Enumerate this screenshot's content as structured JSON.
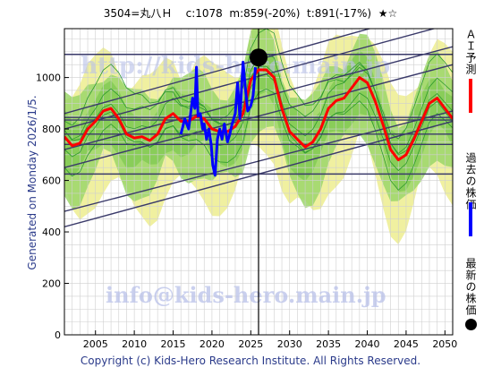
{
  "header": {
    "title": "3504=丸八Ｈ    c:1078  m:859(-20%)  t:891(-17%)  ★☆",
    "generated": "Generated on Monday 2026/1/5.",
    "copyright": "Copyright (c) Kids-Hero Research Institute. All Rights Reserved.",
    "watermark": "info@kids-hero.main.jp",
    "watermark_top": "http://kids-hero.main.jp"
  },
  "legend": {
    "ai_label": "ＡＩ予測",
    "past_label": "過去の株価",
    "latest_label": "最新の株価"
  },
  "colors": {
    "ai": "#ff0000",
    "past": "#0000ff",
    "latest": "#000000",
    "band_green": "#9bd66a",
    "band_yellow": "#f0f0a0",
    "trend": "#3a3a6a",
    "bg": "#ffffff"
  },
  "chart_data": {
    "type": "line",
    "xlim": [
      2001,
      2051
    ],
    "ylim": [
      0,
      1190
    ],
    "x_ticks": [
      2005,
      2010,
      2015,
      2020,
      2025,
      2030,
      2035,
      2040,
      2045,
      2050
    ],
    "y_ticks": [
      0,
      200,
      400,
      600,
      800,
      1000
    ],
    "current_marker": {
      "x": 2026.0,
      "y": 1078
    },
    "current_year_line": 2026.0,
    "horizontal_lines": [
      1090,
      845,
      835,
      780,
      740,
      625
    ],
    "trend_lines": [
      {
        "x": [
          2001,
          2051
        ],
        "y": [
          860,
          1280
        ]
      },
      {
        "x": [
          2001,
          2051
        ],
        "y": [
          800,
          1210
        ]
      },
      {
        "x": [
          2001,
          2051
        ],
        "y": [
          720,
          1120
        ]
      },
      {
        "x": [
          2001,
          2051
        ],
        "y": [
          650,
          1050
        ]
      },
      {
        "x": [
          2001,
          2051
        ],
        "y": [
          480,
          870
        ]
      },
      {
        "x": [
          2001,
          2051
        ],
        "y": [
          420,
          830
        ]
      }
    ],
    "series": [
      {
        "name": "ＡＩ予測",
        "x": [
          2001,
          2002,
          2003,
          2004,
          2005,
          2006,
          2007,
          2008,
          2009,
          2010,
          2011,
          2012,
          2013,
          2014,
          2015,
          2016,
          2017,
          2018,
          2019,
          2020,
          2021,
          2022,
          2023,
          2024,
          2025,
          2026,
          2027,
          2028,
          2029,
          2030,
          2031,
          2032,
          2033,
          2034,
          2035,
          2036,
          2037,
          2038,
          2039,
          2040,
          2041,
          2042,
          2043,
          2044,
          2045,
          2046,
          2047,
          2048,
          2049,
          2050,
          2051
        ],
        "y": [
          770,
          735,
          745,
          800,
          830,
          870,
          880,
          840,
          780,
          765,
          770,
          755,
          780,
          840,
          860,
          830,
          830,
          850,
          840,
          800,
          790,
          790,
          810,
          860,
          990,
          1030,
          1030,
          1000,
          880,
          790,
          760,
          730,
          750,
          800,
          880,
          910,
          920,
          960,
          1000,
          980,
          910,
          820,
          720,
          680,
          700,
          760,
          830,
          900,
          920,
          880,
          840
        ]
      },
      {
        "name": "過去の株価",
        "x": [
          2016.0,
          2016.5,
          2017.0,
          2017.5,
          2017.8,
          2018.0,
          2018.2,
          2018.5,
          2018.8,
          2019.0,
          2019.3,
          2019.6,
          2019.9,
          2020.1,
          2020.4,
          2020.7,
          2021.0,
          2021.3,
          2021.6,
          2022.0,
          2022.3,
          2022.6,
          2023.0,
          2023.3,
          2023.6,
          2024.0,
          2024.3,
          2024.6,
          2025.0,
          2025.3,
          2025.6
        ],
        "y": [
          780,
          840,
          800,
          920,
          880,
          1040,
          850,
          860,
          800,
          820,
          760,
          800,
          740,
          660,
          620,
          760,
          800,
          760,
          820,
          750,
          780,
          820,
          860,
          980,
          840,
          1060,
          960,
          870,
          890,
          930,
          1040
        ]
      }
    ]
  }
}
